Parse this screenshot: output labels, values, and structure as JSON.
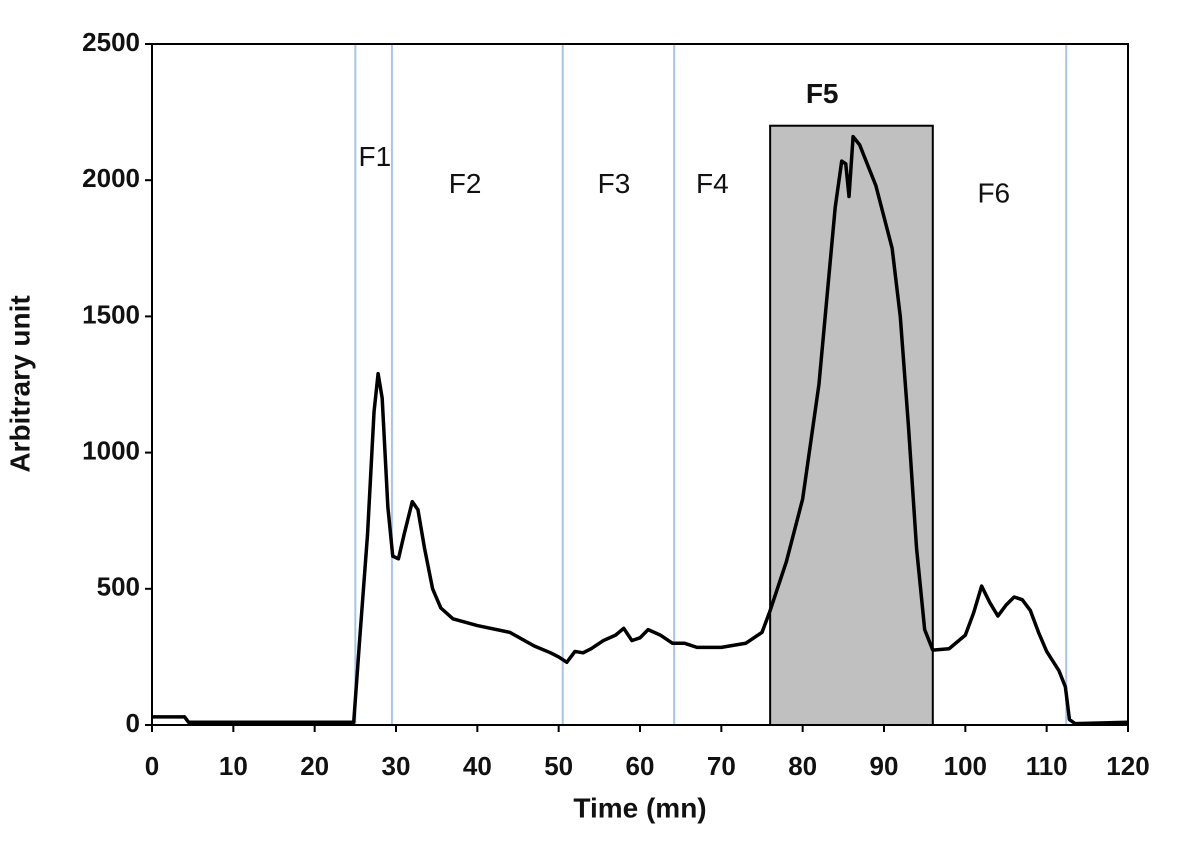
{
  "chart_data": {
    "type": "line",
    "xlabel": "Time (mn)",
    "ylabel": "Arbitrary unit",
    "xlim": [
      0,
      120
    ],
    "xticks": [
      0,
      10,
      20,
      30,
      40,
      50,
      60,
      70,
      80,
      90,
      100,
      110,
      120
    ],
    "ylim": [
      0,
      2500
    ],
    "yticks": [
      0,
      500,
      1000,
      1500,
      2000,
      2500
    ],
    "fraction_bounds": [
      25,
      29.5,
      50.5,
      64.2,
      112.4
    ],
    "fraction_color": "#a9c4e6",
    "highlight": {
      "x": [
        76,
        96
      ],
      "y": 2200,
      "color": "#c0c0c0"
    },
    "annotations": [
      {
        "text": "F1",
        "x": 27.4,
        "y": 2080
      },
      {
        "text": "F2",
        "x": 38.5,
        "y": 1980
      },
      {
        "text": "F3",
        "x": 56.8,
        "y": 1980
      },
      {
        "text": "F4",
        "x": 68.9,
        "y": 1980
      },
      {
        "text": "F5",
        "x": 82.4,
        "y": 2310,
        "weight": "bold"
      },
      {
        "text": "F6",
        "x": 103.5,
        "y": 1945
      }
    ],
    "series": [
      {
        "color": "#000000",
        "x": [
          0,
          4,
          4.5,
          24.8,
          25.5,
          26.5,
          27.3,
          27.8,
          28.3,
          29,
          29.6,
          30.3,
          31,
          32,
          32.7,
          33.5,
          34.5,
          35.5,
          37,
          40,
          44,
          47,
          49,
          50,
          51,
          52,
          53,
          54,
          55.5,
          57,
          58,
          59,
          60,
          61,
          62.5,
          64,
          65.5,
          67,
          70,
          73,
          75,
          76,
          78,
          80,
          82,
          84,
          84.8,
          85.3,
          85.7,
          86.2,
          87,
          89,
          91,
          92,
          93,
          94,
          95,
          96,
          98,
          100,
          101,
          102,
          103,
          104,
          105,
          106,
          107,
          108,
          109,
          110,
          111.5,
          112.3,
          112.8,
          113.5,
          120
        ],
        "values": [
          30,
          30,
          10,
          10,
          300,
          700,
          1150,
          1290,
          1200,
          800,
          620,
          610,
          700,
          820,
          790,
          650,
          500,
          430,
          390,
          365,
          340,
          290,
          265,
          250,
          230,
          270,
          265,
          280,
          310,
          330,
          355,
          310,
          320,
          350,
          330,
          300,
          300,
          285,
          285,
          300,
          340,
          420,
          600,
          830,
          1250,
          1900,
          2070,
          2060,
          1940,
          2160,
          2130,
          1980,
          1750,
          1500,
          1100,
          650,
          350,
          275,
          280,
          330,
          410,
          510,
          450,
          400,
          440,
          470,
          460,
          420,
          340,
          270,
          200,
          140,
          20,
          5,
          10
        ]
      }
    ]
  }
}
